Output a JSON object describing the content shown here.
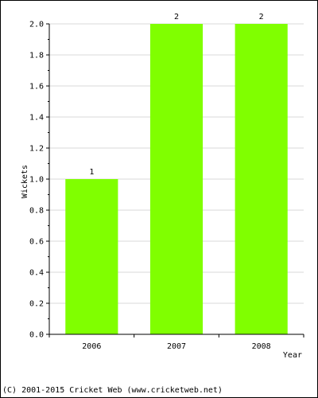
{
  "chart_data": {
    "type": "bar",
    "categories": [
      "2006",
      "2007",
      "2008"
    ],
    "values": [
      1,
      2,
      2
    ],
    "data_labels": [
      "1",
      "2",
      "2"
    ],
    "xlabel": "Year",
    "ylabel": "Wickets",
    "ylim": [
      0,
      2.0
    ],
    "yticks": [
      "0.0",
      "0.2",
      "0.4",
      "0.6",
      "0.8",
      "1.0",
      "1.2",
      "1.4",
      "1.6",
      "1.8",
      "2.0"
    ],
    "grid": true,
    "bar_color": "#80ff00",
    "grid_color": "#d9d9d9"
  },
  "footer": {
    "text": "(C) 2001-2015 Cricket Web (www.cricketweb.net)"
  }
}
